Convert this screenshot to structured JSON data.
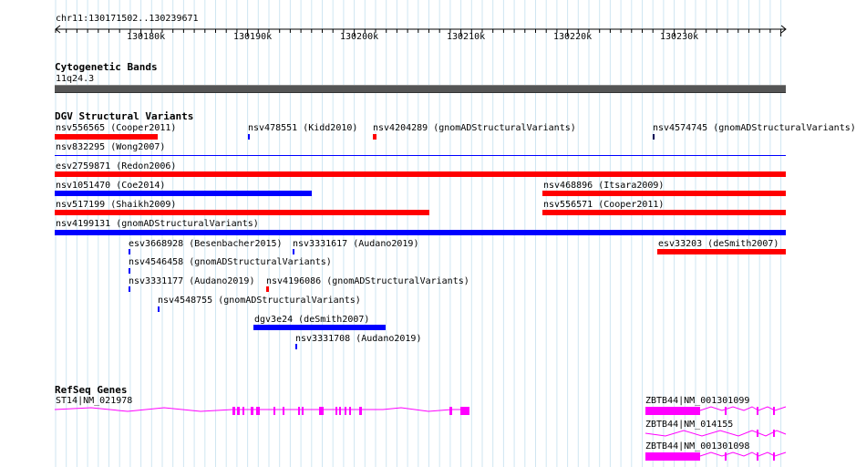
{
  "colors": {
    "forward": "#0000ff",
    "reverse": "#ff0000",
    "gene": "#ff00ff",
    "band": "#555555",
    "grid": "#cfe6f2"
  },
  "ruler": {
    "location": "chr11:130171502..130239671",
    "ticks": [
      "130180k",
      "130190k",
      "130200k",
      "130210k",
      "130220k",
      "130230k"
    ]
  },
  "cyto": {
    "title": "Cytogenetic Bands",
    "band_label": "11q24.3"
  },
  "dgv": {
    "title": "DGV Structural Variants",
    "features": [
      {
        "id": "f1",
        "label": "nsv556565 (Cooper2011)",
        "color": "reverse"
      },
      {
        "id": "f2",
        "label": "nsv478551 (Kidd2010)",
        "color": "forward"
      },
      {
        "id": "f3",
        "label": "nsv4204289 (gnomADStructuralVariants)",
        "color": "reverse"
      },
      {
        "id": "f4",
        "label": "nsv4574745 (gnomADStructuralVariants)",
        "color": "forward"
      },
      {
        "id": "f5",
        "label": "nsv832295 (Wong2007)",
        "color": "forward"
      },
      {
        "id": "f6",
        "label": "esv2759871 (Redon2006)",
        "color": "reverse"
      },
      {
        "id": "f7",
        "label": "nsv1051470 (Coe2014)",
        "color": "forward"
      },
      {
        "id": "f8",
        "label": "nsv468896 (Itsara2009)",
        "color": "reverse"
      },
      {
        "id": "f9",
        "label": "nsv517199 (Shaikh2009)",
        "color": "reverse"
      },
      {
        "id": "f10",
        "label": "nsv556571 (Cooper2011)",
        "color": "reverse"
      },
      {
        "id": "f11",
        "label": "nsv4199131 (gnomADStructuralVariants)",
        "color": "forward"
      },
      {
        "id": "f12",
        "label": "esv3668928 (Besenbacher2015)",
        "color": "forward"
      },
      {
        "id": "f13",
        "label": "nsv3331617 (Audano2019)",
        "color": "forward"
      },
      {
        "id": "f14",
        "label": "esv33203 (deSmith2007)",
        "color": "reverse"
      },
      {
        "id": "f15",
        "label": "nsv4546458 (gnomADStructuralVariants)",
        "color": "forward"
      },
      {
        "id": "f16",
        "label": "nsv3331177 (Audano2019)",
        "color": "forward"
      },
      {
        "id": "f17",
        "label": "nsv4196086 (gnomADStructuralVariants)",
        "color": "reverse"
      },
      {
        "id": "f18",
        "label": "nsv4548755 (gnomADStructuralVariants)",
        "color": "forward"
      },
      {
        "id": "f19",
        "label": "dgv3e24 (deSmith2007)",
        "color": "forward"
      },
      {
        "id": "f20",
        "label": "nsv3331708 (Audano2019)",
        "color": "forward"
      }
    ]
  },
  "refseq": {
    "title": "RefSeq Genes",
    "genes": [
      {
        "id": "g1",
        "label": "ST14|NM_021978"
      },
      {
        "id": "g2",
        "label": "ZBTB44|NM_001301099"
      },
      {
        "id": "g3",
        "label": "ZBTB44|NM_014155"
      },
      {
        "id": "g4",
        "label": "ZBTB44|NM_001301098"
      }
    ]
  }
}
